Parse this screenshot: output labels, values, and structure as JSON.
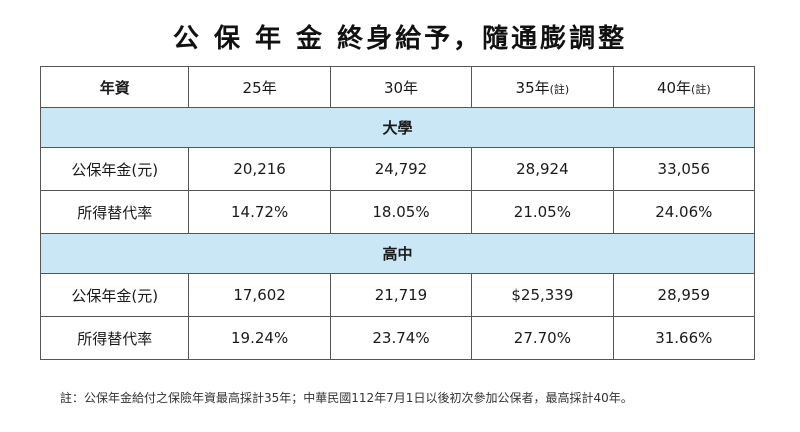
{
  "title": "公 保 年 金  終身給予，隨通膨調整",
  "table": {
    "header": {
      "label": "年資",
      "columns": [
        {
          "main": "25年",
          "note": ""
        },
        {
          "main": "30年",
          "note": ""
        },
        {
          "main": "35年",
          "note": "(註)"
        },
        {
          "main": "40年",
          "note": "(註)"
        }
      ]
    },
    "sections": [
      {
        "name": "大學",
        "rows": [
          {
            "label": "公保年金(元)",
            "values": [
              "20,216",
              "24,792",
              "28,924",
              "33,056"
            ]
          },
          {
            "label": "所得替代率",
            "values": [
              "14.72%",
              "18.05%",
              "21.05%",
              "24.06%"
            ]
          }
        ]
      },
      {
        "name": "高中",
        "rows": [
          {
            "label": "公保年金(元)",
            "values": [
              "17,602",
              "21,719",
              "$25,339",
              "28,959"
            ]
          },
          {
            "label": "所得替代率",
            "values": [
              "19.24%",
              "23.74%",
              "27.70%",
              "31.66%"
            ]
          }
        ]
      }
    ]
  },
  "footnote": "註：公保年金給付之保險年資最高採計35年；中華民國112年7月1日以後初次參加公保者，最高採計40年。"
}
